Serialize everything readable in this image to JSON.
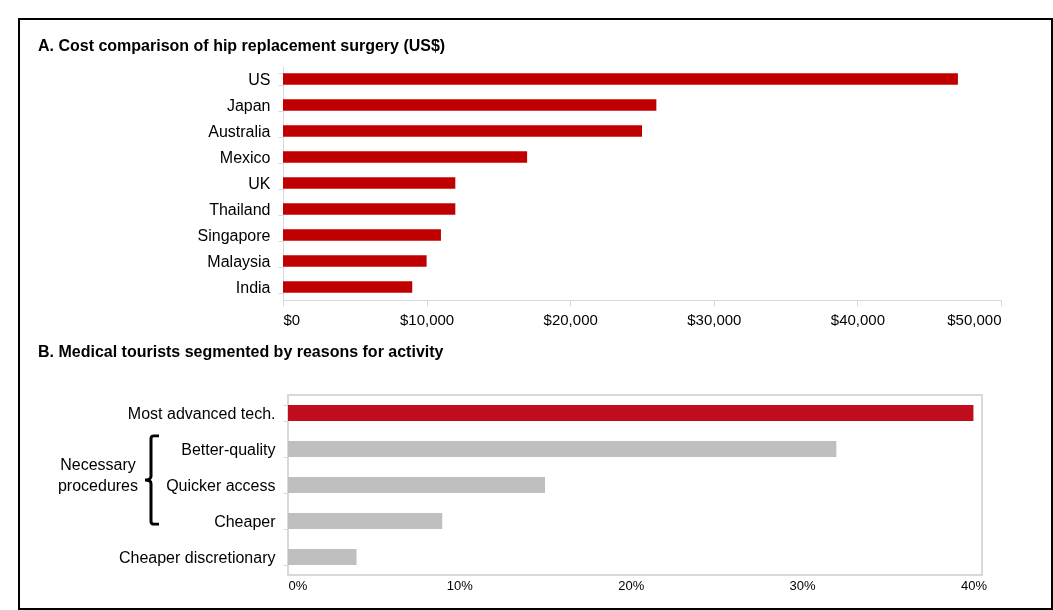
{
  "chart_data": [
    {
      "type": "bar",
      "orientation": "horizontal",
      "title": "A. Cost comparison of hip replacement surgery (US$)",
      "categories": [
        "US",
        "Japan",
        "Australia",
        "Mexico",
        "UK",
        "Thailand",
        "Singapore",
        "Malaysia",
        "India"
      ],
      "values": [
        47000,
        26000,
        25000,
        17000,
        12000,
        12000,
        11000,
        10000,
        9000
      ],
      "color": "#c00000",
      "xlim": [
        0,
        50000
      ],
      "xticks": [
        {
          "value": 0,
          "label": "$0"
        },
        {
          "value": 10000,
          "label": "$10,000"
        },
        {
          "value": 20000,
          "label": "$20,000"
        },
        {
          "value": 30000,
          "label": "$30,000"
        },
        {
          "value": 40000,
          "label": "$40,000"
        },
        {
          "value": 50000,
          "label": "$50,000"
        }
      ],
      "grid": false
    },
    {
      "type": "bar",
      "orientation": "horizontal",
      "title": "B. Medical tourists segmented by reasons for activity",
      "categories": [
        "Most advanced tech.",
        "Better-quality",
        "Quicker access",
        "Cheaper",
        "Cheaper discretionary"
      ],
      "values": [
        40,
        32,
        15,
        9,
        4
      ],
      "colors": [
        "#c00d1e",
        "#bfbfbf",
        "#bfbfbf",
        "#bfbfbf",
        "#bfbfbf"
      ],
      "xlim": [
        0,
        40.5
      ],
      "xticks": [
        {
          "value": 0,
          "label": "0%"
        },
        {
          "value": 10,
          "label": "10%"
        },
        {
          "value": 20,
          "label": "20%"
        },
        {
          "value": 30,
          "label": "30%"
        },
        {
          "value": 40,
          "label": "40%"
        }
      ],
      "grid": false,
      "annotations": [
        "Necessary procedures"
      ]
    }
  ]
}
